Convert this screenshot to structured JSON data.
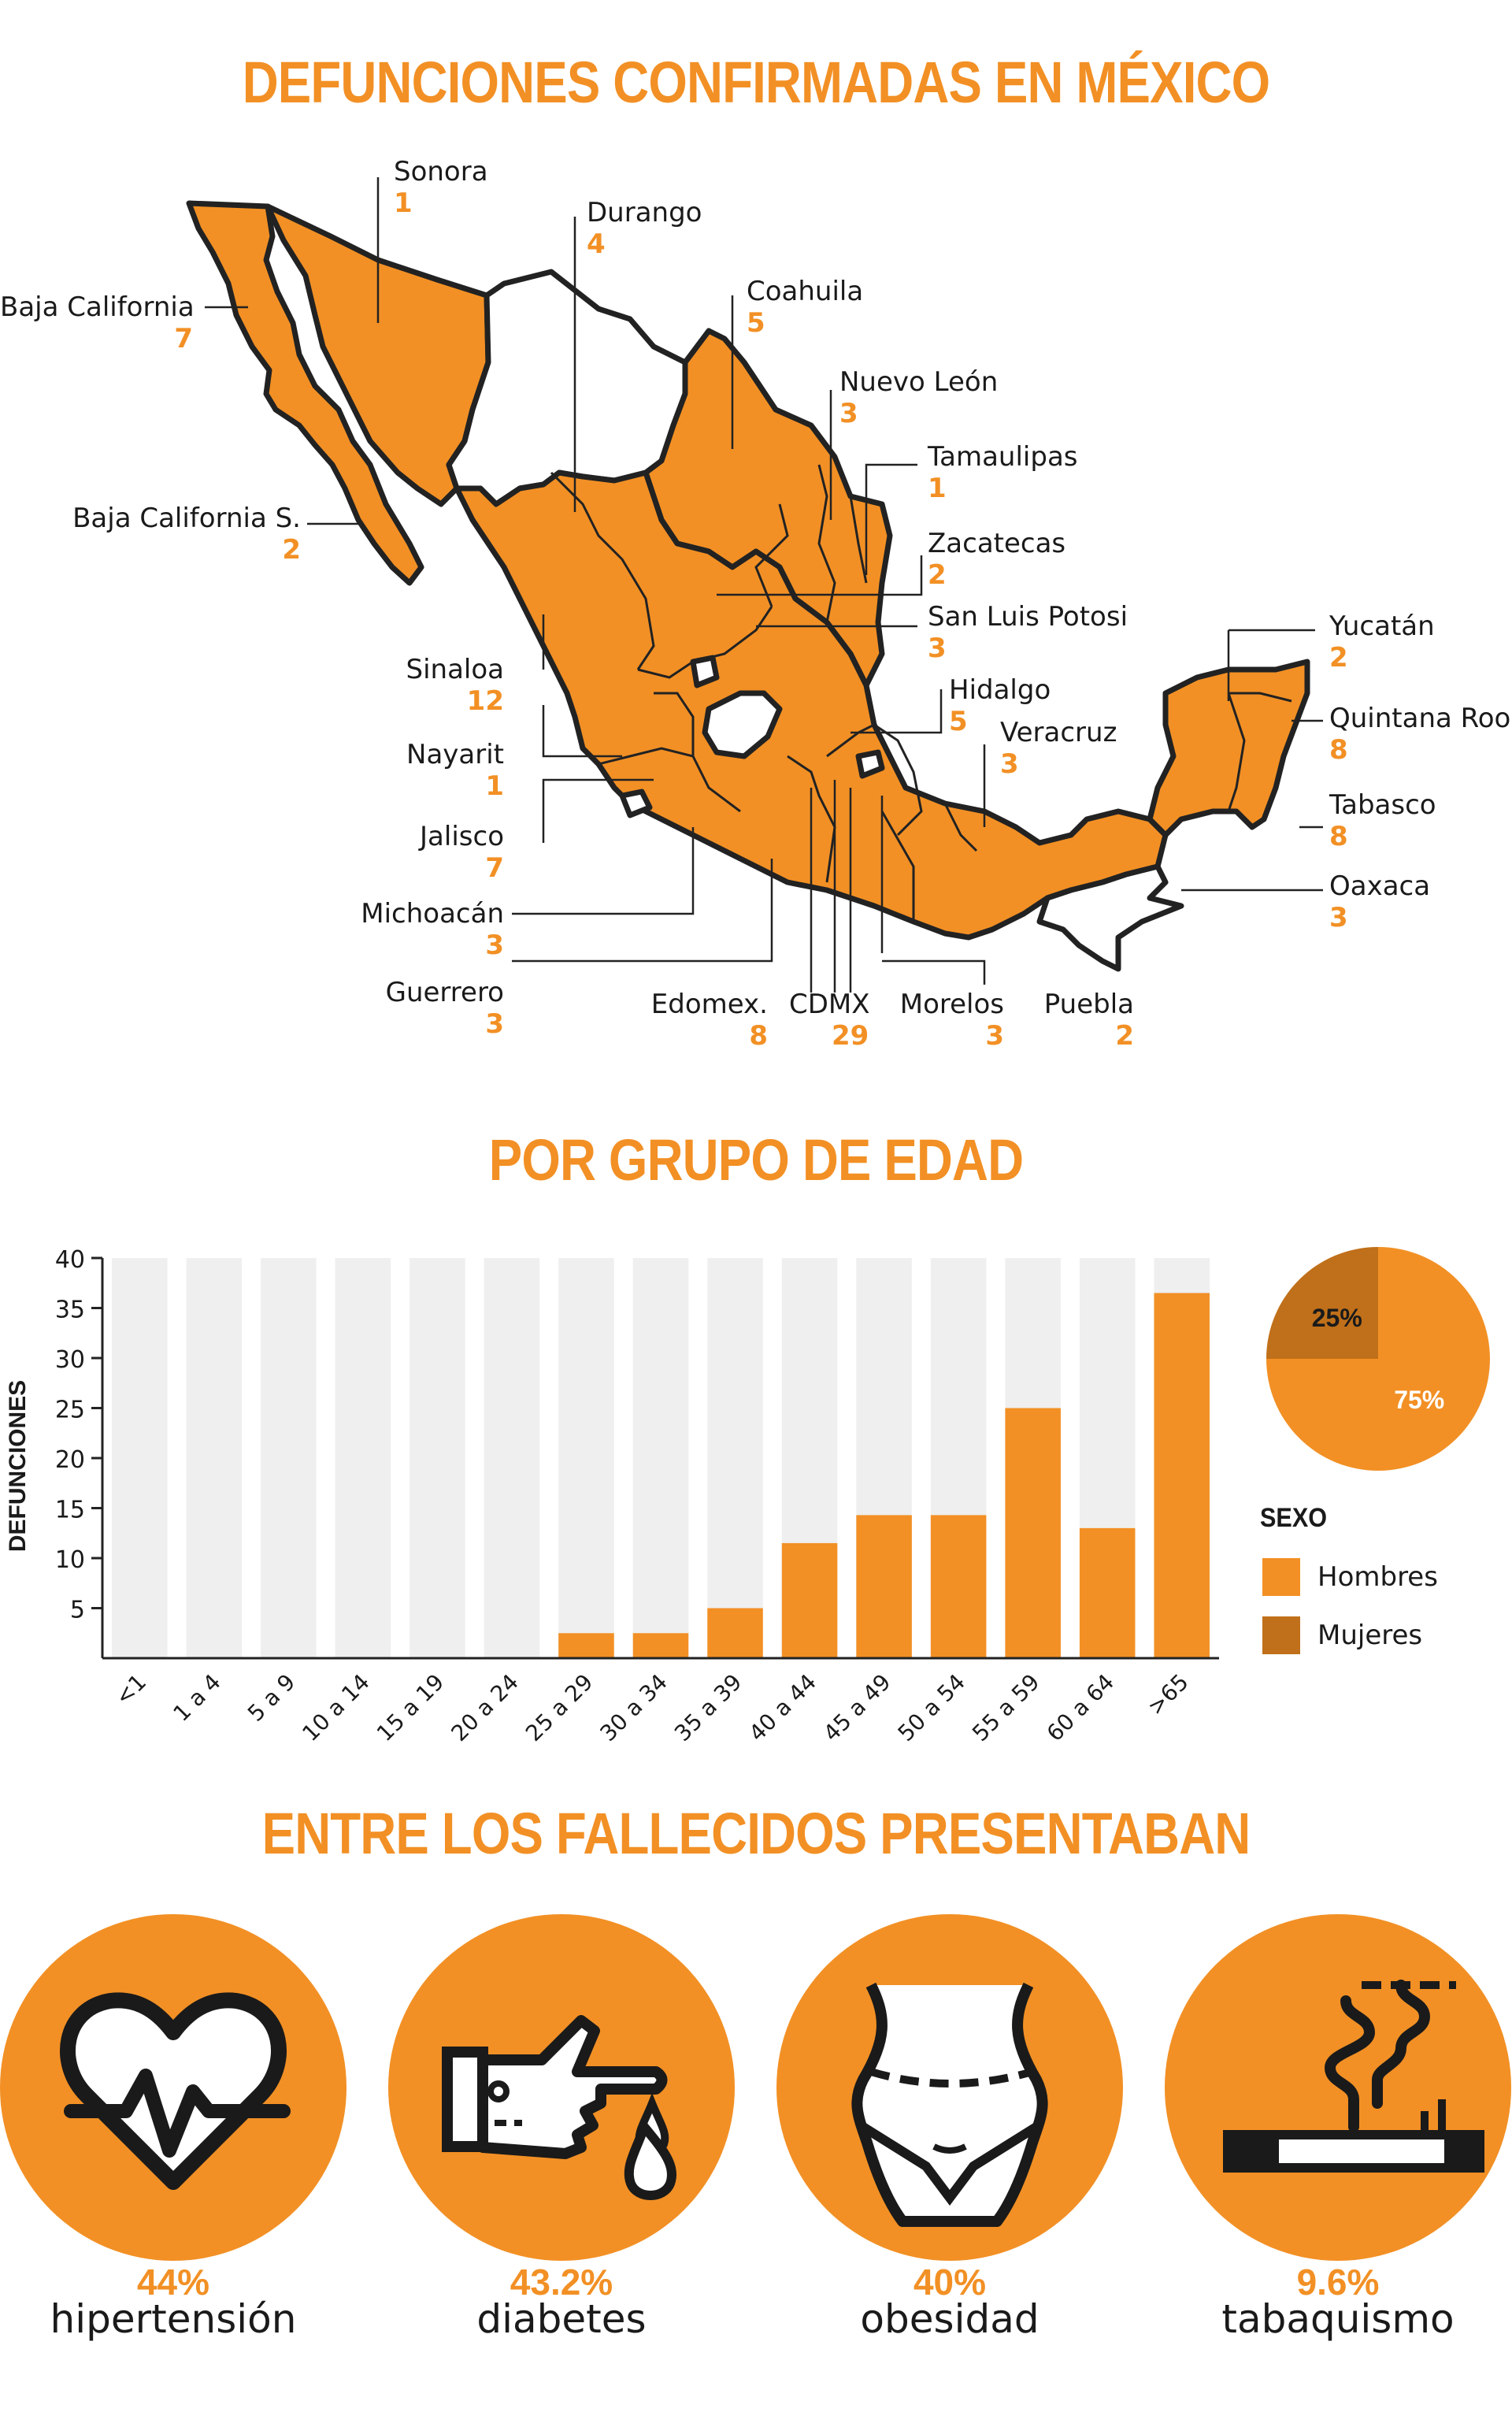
{
  "titles": {
    "map": "DEFUNCIONES CONFIRMADAS EN MÉXICO",
    "age": "POR GRUPO DE EDAD",
    "conditions": "ENTRE LOS FALLECIDOS PRESENTABAN"
  },
  "colors": {
    "accent": "#f29025",
    "dark_orange": "#c0701a",
    "band": "#efefef",
    "outline": "#222222"
  },
  "states": [
    {
      "name": "Sonora",
      "value": "1"
    },
    {
      "name": "Durango",
      "value": "4"
    },
    {
      "name": "Baja California",
      "value": "7"
    },
    {
      "name": "Coahuila",
      "value": "5"
    },
    {
      "name": "Nuevo León",
      "value": "3"
    },
    {
      "name": "Tamaulipas",
      "value": "1"
    },
    {
      "name": "Baja California S.",
      "value": "2"
    },
    {
      "name": "Zacatecas",
      "value": "2"
    },
    {
      "name": "San Luis Potosi",
      "value": "3"
    },
    {
      "name": "Yucatán",
      "value": "2"
    },
    {
      "name": "Sinaloa",
      "value": "12"
    },
    {
      "name": "Hidalgo",
      "value": "5"
    },
    {
      "name": "Quintana Roo",
      "value": "8"
    },
    {
      "name": "Nayarit",
      "value": "1"
    },
    {
      "name": "Veracruz",
      "value": "3"
    },
    {
      "name": "Tabasco",
      "value": "8"
    },
    {
      "name": "Jalisco",
      "value": "7"
    },
    {
      "name": "Oaxaca",
      "value": "3"
    },
    {
      "name": "Michoacán",
      "value": "3"
    },
    {
      "name": "Guerrero",
      "value": "3"
    },
    {
      "name": "Edomex.",
      "value": "8"
    },
    {
      "name": "CDMX",
      "value": "29"
    },
    {
      "name": "Morelos",
      "value": "3"
    },
    {
      "name": "Puebla",
      "value": "2"
    }
  ],
  "chart_data": [
    {
      "type": "bar",
      "categories": [
        "<1",
        "1 a 4",
        "5 a 9",
        "10 a 14",
        "15 a 19",
        "20 a 24",
        "25 a 29",
        "30 a 34",
        "35 a 39",
        "40 a 44",
        "45 a 49",
        "50 a 54",
        "55 a 59",
        "60 a 64",
        ">65"
      ],
      "values": [
        0,
        0,
        0,
        0,
        0,
        0,
        2.5,
        2.5,
        5,
        11.5,
        14.3,
        14.3,
        25,
        13,
        36.5
      ],
      "ylabel": "DEFUNCIONES",
      "ylim": [
        0,
        40
      ],
      "yticks": [
        5,
        10,
        15,
        20,
        25,
        30,
        35,
        40
      ],
      "grid": "alternating vertical bands"
    },
    {
      "type": "pie",
      "slices": [
        {
          "label": "75%",
          "value": 75,
          "category": "Hombres",
          "color": "#f29025"
        },
        {
          "label": "25%",
          "value": 25,
          "category": "Mujeres",
          "color": "#c0701a"
        }
      ],
      "legend_title": "SEXO",
      "legend": [
        "Hombres",
        "Mujeres"
      ]
    }
  ],
  "conditions": [
    {
      "pct": "44%",
      "name": "hipertensión",
      "icon": "heart-pulse-icon"
    },
    {
      "pct": "43.2%",
      "name": "diabetes",
      "icon": "finger-blood-drop-icon"
    },
    {
      "pct": "40%",
      "name": "obesidad",
      "icon": "torso-waist-icon"
    },
    {
      "pct": "9.6%",
      "name": "tabaquismo",
      "icon": "cigarette-smoke-icon"
    }
  ]
}
